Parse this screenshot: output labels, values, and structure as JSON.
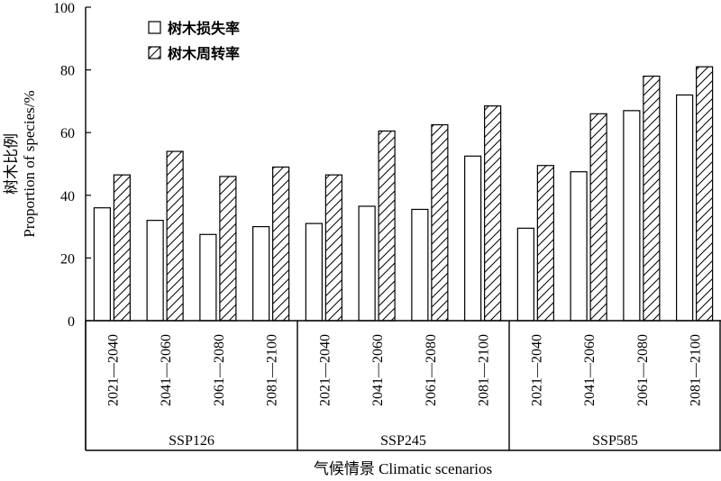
{
  "chart_data": {
    "type": "bar",
    "ylabel_cn": "树木比例",
    "ylabel_en": "Proportion of species/%",
    "xlabel": "气候情景 Climatic scenarios",
    "ylim": [
      0,
      100
    ],
    "yticks": [
      0,
      20,
      40,
      60,
      80,
      100
    ],
    "legend": "top-left",
    "groups": [
      {
        "scenario": "SSP126",
        "periods": [
          "2021—2040",
          "2041—2060",
          "2061—2080",
          "2081—2100"
        ]
      },
      {
        "scenario": "SSP245",
        "periods": [
          "2021—2040",
          "2041—2060",
          "2061—2080",
          "2081—2100"
        ]
      },
      {
        "scenario": "SSP585",
        "periods": [
          "2021—2040",
          "2041—2060",
          "2061—2080",
          "2081—2100"
        ]
      }
    ],
    "series": [
      {
        "name": "树木损失率",
        "pattern": "plain",
        "values": [
          36,
          32,
          27.5,
          30,
          31,
          36.5,
          35.5,
          52.5,
          29.5,
          47.5,
          67,
          72
        ]
      },
      {
        "name": "树木周转率",
        "pattern": "hatched",
        "values": [
          46.5,
          54,
          46,
          49,
          46.5,
          60.5,
          62.5,
          68.5,
          49.5,
          66,
          78,
          81
        ]
      }
    ]
  }
}
